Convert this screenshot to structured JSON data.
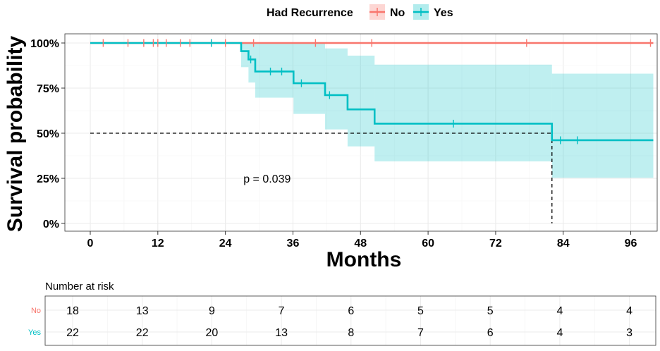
{
  "legend": {
    "title": "Had Recurrence",
    "entries": [
      "No",
      "Yes"
    ]
  },
  "chart_data": {
    "type": "line",
    "subtype": "kaplan-meier survival curve",
    "xlabel": "Months",
    "ylabel": "Survival probability",
    "xlim": [
      0,
      100
    ],
    "ylim": [
      0,
      1
    ],
    "x_ticks": [
      0,
      12,
      24,
      36,
      48,
      60,
      72,
      84,
      96
    ],
    "y_ticks": [
      0,
      0.25,
      0.5,
      0.75,
      1.0
    ],
    "y_tick_labels": [
      "0%",
      "25%",
      "50%",
      "75%",
      "100%"
    ],
    "grid": true,
    "legend_position": "top",
    "annotation": "p = 0.039",
    "median_survival": {
      "series": "Yes",
      "x": 82,
      "y": 0.5
    },
    "series": [
      {
        "name": "No",
        "color": "#F8766D",
        "steps": [
          [
            0,
            1.0
          ],
          [
            100,
            1.0
          ]
        ],
        "censor_times": [
          2.3,
          6.7,
          9.5,
          11.2,
          12,
          13.5,
          16,
          17.7,
          21.5,
          24,
          29,
          40,
          50,
          77.5,
          99.5
        ],
        "ci": []
      },
      {
        "name": "Yes",
        "color": "#00BFC4",
        "steps": [
          [
            0,
            1.0
          ],
          [
            26.8,
            0.955
          ],
          [
            28.1,
            0.909
          ],
          [
            29.3,
            0.842
          ],
          [
            36.1,
            0.777
          ],
          [
            41.7,
            0.711
          ],
          [
            45.7,
            0.632
          ],
          [
            50.5,
            0.553
          ],
          [
            82,
            0.461
          ],
          [
            100,
            0.461
          ]
        ],
        "censor_times": [
          21.5,
          28.5,
          32,
          34,
          37.5,
          42.5,
          64.5,
          83.5,
          86.5
        ],
        "ci": [
          {
            "x0": 26.8,
            "x1": 28.1,
            "lo": 0.866,
            "hi": 1.0
          },
          {
            "x0": 28.1,
            "x1": 29.3,
            "lo": 0.781,
            "hi": 1.0
          },
          {
            "x0": 29.3,
            "x1": 36.1,
            "lo": 0.697,
            "hi": 1.0
          },
          {
            "x0": 36.1,
            "x1": 41.7,
            "lo": 0.607,
            "hi": 1.0
          },
          {
            "x0": 41.7,
            "x1": 45.7,
            "lo": 0.521,
            "hi": 0.97
          },
          {
            "x0": 45.7,
            "x1": 50.5,
            "lo": 0.427,
            "hi": 0.93
          },
          {
            "x0": 50.5,
            "x1": 82,
            "lo": 0.344,
            "hi": 0.88
          },
          {
            "x0": 82,
            "x1": 100,
            "lo": 0.253,
            "hi": 0.83
          }
        ]
      }
    ]
  },
  "risk_table": {
    "title": "Number at risk",
    "times": [
      0,
      12,
      24,
      36,
      48,
      60,
      72,
      84,
      96
    ],
    "rows": [
      {
        "label": "No",
        "color": "#F8766D",
        "values": [
          18,
          13,
          9,
          7,
          6,
          5,
          5,
          4,
          4
        ]
      },
      {
        "label": "Yes",
        "color": "#00BFC4",
        "values": [
          22,
          22,
          20,
          13,
          8,
          7,
          6,
          4,
          3
        ]
      }
    ]
  }
}
